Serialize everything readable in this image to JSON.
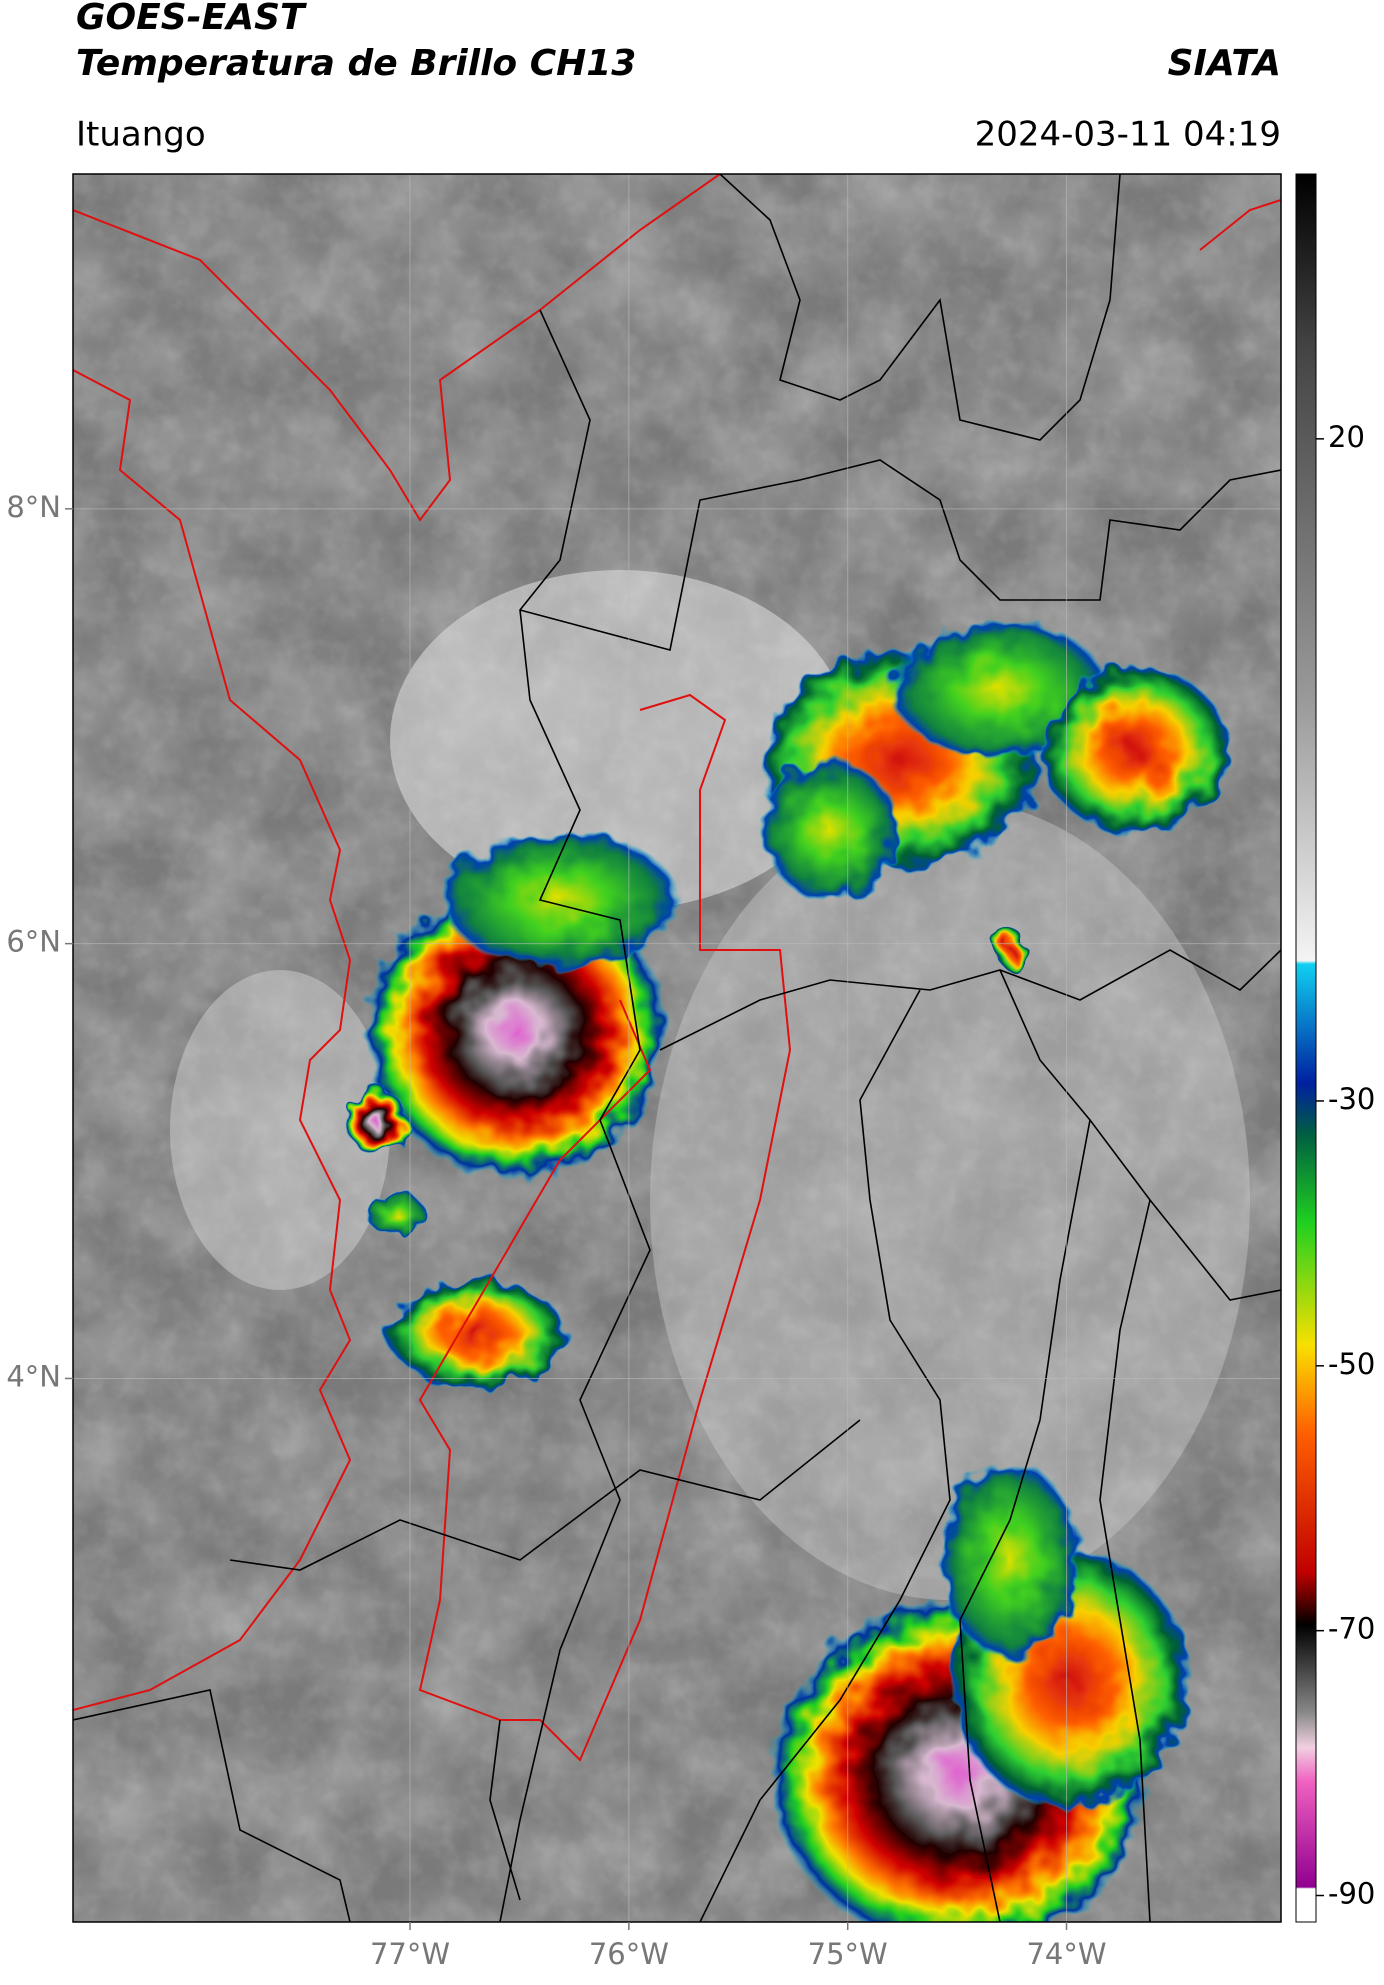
{
  "header": {
    "title_line1": "GOES-EAST",
    "title_line2": "Temperatura de Brillo CH13",
    "brand": "SIATA",
    "location": "Ituango",
    "datetime": "2024-03-11 04:19"
  },
  "map": {
    "lonlim": [
      -78.54,
      -73.02
    ],
    "latlim": [
      1.5,
      9.54
    ],
    "lonticks": [
      {
        "value": -77,
        "label": "77°W"
      },
      {
        "value": -76,
        "label": "76°W"
      },
      {
        "value": -75,
        "label": "75°W"
      },
      {
        "value": -74,
        "label": "74°W"
      }
    ],
    "latticks": [
      {
        "value": 8,
        "label": "8°N"
      },
      {
        "value": 6,
        "label": "6°N"
      },
      {
        "value": 4,
        "label": "4°N"
      }
    ]
  },
  "colorbar": {
    "lim": [
      -92,
      40
    ],
    "ticks": [
      20,
      -30,
      -50,
      -70,
      -90
    ]
  }
}
